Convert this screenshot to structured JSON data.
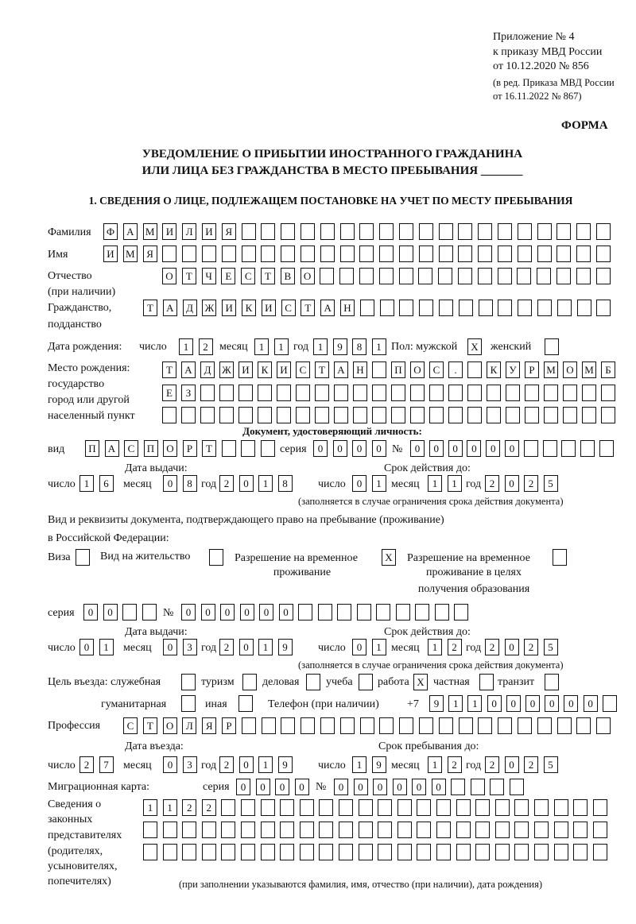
{
  "header": {
    "appendix": "Приложение № 4",
    "order": "к приказу МВД России",
    "order_date": "от 10.12.2020 № 856",
    "edition": "(в ред. Приказа МВД России",
    "edition_date": "от 16.11.2022 № 867)",
    "form": "ФОРМА",
    "title_1": "УВЕДОМЛЕНИЕ О ПРИБЫТИИ ИНОСТРАННОГО ГРАЖДАНИНА",
    "title_2": "ИЛИ ЛИЦА БЕЗ ГРАЖДАНСТВА В МЕСТО ПРЕБЫВАНИЯ _______",
    "section_1": "1. СВЕДЕНИЯ О ЛИЦЕ, ПОДЛЕЖАЩЕМ ПОСТАНОВКЕ НА УЧЕТ ПО МЕСТУ ПРЕБЫВАНИЯ"
  },
  "labels": {
    "surname": "Фамилия",
    "name": "Имя",
    "patronymic": "Отчество",
    "patronymic_note": "(при наличии)",
    "citizenship": "Гражданство,",
    "citizenship_2": "подданство",
    "birth_date": "Дата рождения:",
    "day": "число",
    "month": "месяц",
    "year": "год",
    "sex_male": "Пол: мужской",
    "sex_female": "женский",
    "birth_place": "Место рождения:",
    "birth_place_2": "государство",
    "birth_place_3": "город или другой",
    "birth_place_4": "населенный пункт",
    "id_doc": "Документ, удостоверяющий личность:",
    "kind": "вид",
    "series": "серия",
    "number": "№",
    "issue_date": "Дата выдачи:",
    "valid_until": "Срок действия до:",
    "valid_note": "(заполняется в случае ограничения срока действия документа)",
    "stay_doc": "Вид и реквизиты документа, подтверждающего право на пребывание (проживание)",
    "stay_doc_2": "в Российской Федерации:",
    "visa": "Виза",
    "residence": "Вид на жительство",
    "temp_res": "Разрешение на временное",
    "temp_res_2": "проживание",
    "temp_edu": "Разрешение на временное",
    "temp_edu_2": "проживание в целях",
    "temp_edu_3": "получения образования",
    "purpose": "Цель въезда: служебная",
    "tourism": "туризм",
    "business": "деловая",
    "study": "учеба",
    "work": "работа",
    "private": "частная",
    "transit": "транзит",
    "humanitarian": "гуманитарная",
    "other": "иная",
    "phone": "Телефон (при наличии)",
    "phone_prefix": "+7",
    "profession": "Профессия",
    "entry_date": "Дата въезда:",
    "stay_until": "Срок пребывания до:",
    "migration_card": "Миграционная карта:",
    "reps_1": "Сведения о",
    "reps_2": "законных",
    "reps_3": "представителях",
    "reps_4": "(родителях,",
    "reps_5": "усыновителях,",
    "reps_6": "попечителях)",
    "reps_note": "(при заполнении указываются фамилия, имя, отчество (при наличии), дата рождения)"
  },
  "person": {
    "surname": "ФАМИЛИЯ",
    "name": "ИМЯ",
    "patronymic": "ОТЧЕСТВО",
    "citizenship": "ТАДЖИКИСТАН",
    "birth_day": "12",
    "birth_month": "11",
    "birth_year": "1981",
    "sex_male": "X",
    "sex_female": "",
    "birth_place_1": "ТАДЖИКИСТАН ПОС. КУРМОМБ",
    "birth_place_2": "ЕЗ",
    "birth_place_3": "",
    "doc_kind": "ПАСПОРТ",
    "doc_series": "0000",
    "doc_number": "000000",
    "doc_issue_day": "16",
    "doc_issue_month": "08",
    "doc_issue_year": "2018",
    "doc_valid_day": "01",
    "doc_valid_month": "11",
    "doc_valid_year": "2025",
    "visa": "",
    "residence": "",
    "temp_res": "X",
    "temp_edu": "",
    "stay_series": "00",
    "stay_number": "000000",
    "stay_issue_day": "01",
    "stay_issue_month": "03",
    "stay_issue_year": "2019",
    "stay_valid_day": "01",
    "stay_valid_month": "12",
    "stay_valid_year": "2025",
    "purpose_official": "",
    "purpose_tourism": "",
    "purpose_business": "",
    "purpose_study": "",
    "purpose_work": "X",
    "purpose_private": "",
    "purpose_transit": "",
    "purpose_humanitarian": "",
    "purpose_other": "",
    "phone": "911000000",
    "profession": "СТОЛЯР",
    "entry_day": "27",
    "entry_month": "03",
    "entry_year": "2019",
    "stay_until_day": "19",
    "stay_until_month": "12",
    "stay_until_year": "2025",
    "mc_series": "0000",
    "mc_number": "000000",
    "reps_1": "1122",
    "reps_2": "",
    "reps_3": ""
  }
}
